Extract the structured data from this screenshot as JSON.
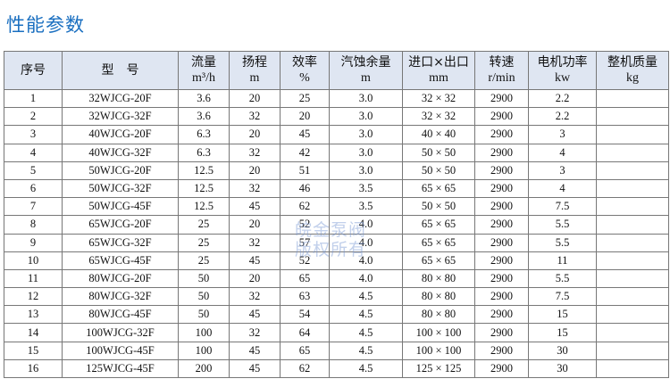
{
  "title": "性能参数",
  "headers": [
    {
      "name": "序号",
      "unit": ""
    },
    {
      "name": "型　号",
      "unit": ""
    },
    {
      "name": "流量",
      "unit": "m³/h"
    },
    {
      "name": "扬程",
      "unit": "m"
    },
    {
      "name": "效率",
      "unit": "%"
    },
    {
      "name": "汽蚀余量",
      "unit": "m"
    },
    {
      "name": "进口×出口",
      "unit": "mm"
    },
    {
      "name": "转速",
      "unit": "r/min"
    },
    {
      "name": "电机功率",
      "unit": "kw"
    },
    {
      "name": "整机质量",
      "unit": "kg"
    }
  ],
  "rows": [
    [
      "1",
      "32WJCG-20F",
      "3.6",
      "20",
      "25",
      "3.0",
      "32 × 32",
      "2900",
      "2.2",
      ""
    ],
    [
      "2",
      "32WJCG-32F",
      "3.6",
      "32",
      "20",
      "3.0",
      "32 × 32",
      "2900",
      "2.2",
      ""
    ],
    [
      "3",
      "40WJCG-20F",
      "6.3",
      "20",
      "45",
      "3.0",
      "40 × 40",
      "2900",
      "3",
      ""
    ],
    [
      "4",
      "40WJCG-32F",
      "6.3",
      "32",
      "42",
      "3.0",
      "50 × 50",
      "2900",
      "4",
      ""
    ],
    [
      "5",
      "50WJCG-20F",
      "12.5",
      "20",
      "51",
      "3.0",
      "50 × 50",
      "2900",
      "3",
      ""
    ],
    [
      "6",
      "50WJCG-32F",
      "12.5",
      "32",
      "46",
      "3.5",
      "65 × 65",
      "2900",
      "4",
      ""
    ],
    [
      "7",
      "50WJCG-45F",
      "12.5",
      "45",
      "62",
      "3.5",
      "50 × 50",
      "2900",
      "7.5",
      ""
    ],
    [
      "8",
      "65WJCG-20F",
      "25",
      "20",
      "52",
      "4.0",
      "65 × 65",
      "2900",
      "5.5",
      ""
    ],
    [
      "9",
      "65WJCG-32F",
      "25",
      "32",
      "57",
      "4.0",
      "65 × 65",
      "2900",
      "5.5",
      ""
    ],
    [
      "10",
      "65WJCG-45F",
      "25",
      "45",
      "52",
      "4.0",
      "65 × 65",
      "2900",
      "11",
      ""
    ],
    [
      "11",
      "80WJCG-20F",
      "50",
      "20",
      "65",
      "4.0",
      "80 × 80",
      "2900",
      "5.5",
      ""
    ],
    [
      "12",
      "80WJCG-32F",
      "50",
      "32",
      "63",
      "4.5",
      "80 × 80",
      "2900",
      "7.5",
      ""
    ],
    [
      "13",
      "80WJCG-45F",
      "50",
      "45",
      "54",
      "4.5",
      "80 × 80",
      "2900",
      "15",
      ""
    ],
    [
      "14",
      "100WJCG-32F",
      "100",
      "32",
      "64",
      "4.5",
      "100 × 100",
      "2900",
      "15",
      ""
    ],
    [
      "15",
      "100WJCG-45F",
      "100",
      "45",
      "65",
      "4.5",
      "100 × 100",
      "2900",
      "30",
      ""
    ],
    [
      "16",
      "125WJCG-45F",
      "200",
      "45",
      "62",
      "4.5",
      "125 × 125",
      "2900",
      "30",
      ""
    ]
  ],
  "watermark": [
    "皖金泵阀",
    "版权所有"
  ]
}
